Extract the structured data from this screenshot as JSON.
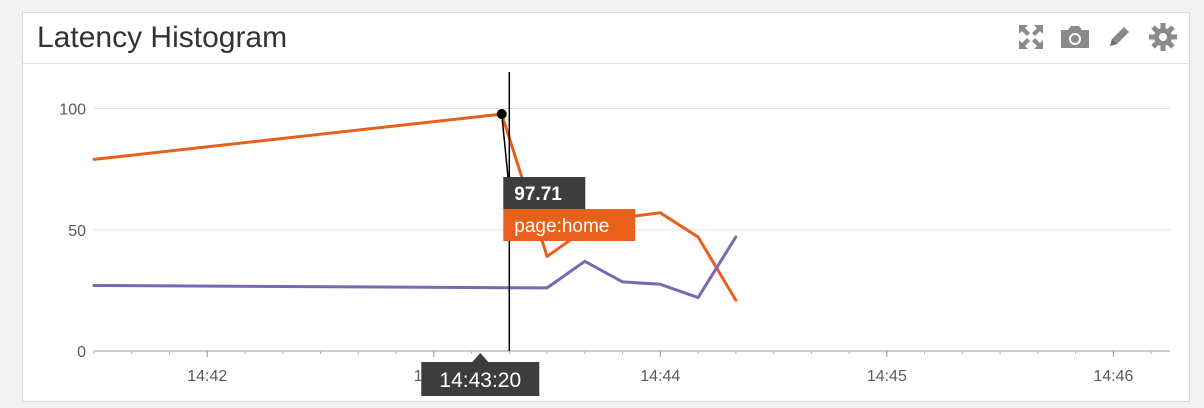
{
  "widget": {
    "title": "Latency Histogram",
    "toolbar": [
      {
        "name": "expand-icon"
      },
      {
        "name": "camera-icon"
      },
      {
        "name": "pencil-icon"
      },
      {
        "name": "gear-icon"
      }
    ]
  },
  "colors": {
    "series_orange": "#e8601c",
    "series_purple": "#7b67b2",
    "tooltip_dark": "#3d3d3d",
    "grid": "#e3e3e3"
  },
  "chart_data": {
    "type": "line",
    "title": "Latency Histogram",
    "xlabel": "",
    "ylabel": "",
    "ylim": [
      0,
      120
    ],
    "xlim": [
      "14:41:30",
      "14:46:15"
    ],
    "grid": true,
    "y_ticks": [
      0,
      50,
      100
    ],
    "x_ticks": [
      "14:42",
      "14:43",
      "14:44",
      "14:45",
      "14:46"
    ],
    "series": [
      {
        "name": "page:home",
        "color": "#e8601c",
        "x": [
          "14:41:30",
          "14:43:18",
          "14:43:30",
          "14:43:40",
          "14:43:50",
          "14:44:00",
          "14:44:10",
          "14:44:20"
        ],
        "y": [
          79,
          97.71,
          39,
          50,
          55,
          57,
          47,
          21
        ]
      },
      {
        "color": "#7b67b2",
        "x": [
          "14:41:30",
          "14:43:30",
          "14:43:40",
          "14:43:50",
          "14:44:00",
          "14:44:10",
          "14:44:20"
        ],
        "y": [
          27,
          26,
          37,
          28.5,
          27.5,
          22,
          47
        ]
      }
    ],
    "hover": {
      "time": "14:43:20",
      "value_label": "97.71",
      "series_label": "page:home",
      "point_x": "14:43:18",
      "point_y": 97.71
    }
  }
}
